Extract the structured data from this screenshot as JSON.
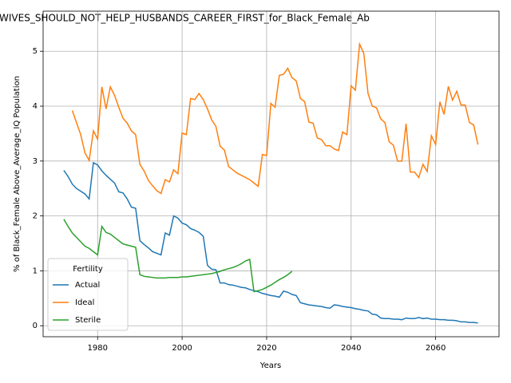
{
  "chart_data": {
    "type": "line",
    "title": "WIVES_SHOULD_NOT_HELP_HUSBANDS_CAREER_FIRST_for_Black_Female_Ab",
    "x_label": "Years",
    "y_label": "% of Black_Female Above_Average_IQ Population",
    "x": [
      1972,
      1973,
      1974,
      1975,
      1976,
      1977,
      1978,
      1979,
      1980,
      1981,
      1982,
      1983,
      1984,
      1985,
      1986,
      1987,
      1988,
      1989,
      1990,
      1991,
      1992,
      1993,
      1994,
      1995,
      1996,
      1997,
      1998,
      1999,
      2000,
      2001,
      2002,
      2003,
      2004,
      2005,
      2006,
      2007,
      2008,
      2009,
      2010,
      2011,
      2012,
      2013,
      2014,
      2015,
      2016,
      2017,
      2018,
      2019,
      2020,
      2021,
      2022,
      2023,
      2024,
      2025,
      2026,
      2027,
      2028,
      2029,
      2030,
      2031,
      2032,
      2033,
      2034,
      2035,
      2036,
      2037,
      2038,
      2039,
      2040,
      2041,
      2042,
      2043,
      2044,
      2045,
      2046,
      2047,
      2048,
      2049,
      2050,
      2051,
      2052,
      2053,
      2054,
      2055,
      2056,
      2057,
      2058,
      2059,
      2060,
      2061,
      2062,
      2063,
      2064,
      2065,
      2066,
      2067,
      2068,
      2069,
      2070
    ],
    "series": [
      {
        "name": "Actual",
        "color": "#1f77b4",
        "values": [
          2.83,
          2.72,
          2.58,
          2.5,
          2.45,
          2.4,
          2.31,
          2.97,
          2.93,
          2.82,
          2.74,
          2.67,
          2.6,
          2.44,
          2.42,
          2.31,
          2.16,
          2.14,
          1.55,
          1.48,
          1.42,
          1.35,
          1.32,
          1.29,
          1.69,
          1.65,
          2.0,
          1.96,
          1.87,
          1.84,
          1.77,
          1.74,
          1.7,
          1.63,
          1.1,
          1.03,
          1.02,
          0.78,
          0.78,
          0.75,
          0.74,
          0.72,
          0.7,
          0.69,
          0.66,
          0.64,
          0.62,
          0.59,
          0.57,
          0.55,
          0.54,
          0.52,
          0.63,
          0.61,
          0.57,
          0.55,
          0.42,
          0.4,
          0.38,
          0.37,
          0.36,
          0.35,
          0.33,
          0.32,
          0.38,
          0.37,
          0.35,
          0.34,
          0.33,
          0.31,
          0.3,
          0.28,
          0.27,
          0.21,
          0.2,
          0.14,
          0.13,
          0.13,
          0.12,
          0.12,
          0.11,
          0.14,
          0.13,
          0.13,
          0.15,
          0.13,
          0.14,
          0.12,
          0.12,
          0.11,
          0.11,
          0.1,
          0.1,
          0.09,
          0.07,
          0.07,
          0.06,
          0.06,
          0.05
        ]
      },
      {
        "name": "Ideal",
        "color": "#ff7f0e",
        "values": [
          null,
          null,
          3.92,
          3.7,
          3.48,
          3.15,
          3.01,
          3.55,
          3.4,
          4.35,
          3.95,
          4.35,
          4.2,
          3.98,
          3.78,
          3.69,
          3.55,
          3.48,
          2.94,
          2.82,
          2.65,
          2.55,
          2.46,
          2.41,
          2.66,
          2.62,
          2.84,
          2.77,
          3.51,
          3.48,
          4.14,
          4.12,
          4.23,
          4.12,
          3.95,
          3.75,
          3.63,
          3.27,
          3.2,
          2.9,
          2.84,
          2.78,
          2.74,
          2.7,
          2.66,
          2.6,
          2.54,
          3.12,
          3.1,
          4.05,
          3.98,
          4.56,
          4.58,
          4.69,
          4.52,
          4.46,
          4.14,
          4.08,
          3.71,
          3.69,
          3.42,
          3.39,
          3.28,
          3.28,
          3.22,
          3.19,
          3.53,
          3.48,
          4.37,
          4.29,
          5.13,
          4.96,
          4.23,
          4.0,
          3.97,
          3.77,
          3.7,
          3.35,
          3.29,
          3.0,
          3.0,
          3.68,
          2.8,
          2.8,
          2.7,
          2.94,
          2.81,
          3.46,
          3.3,
          4.08,
          3.85,
          4.36,
          4.11,
          4.27,
          4.02,
          4.02,
          3.7,
          3.66,
          3.3
        ]
      },
      {
        "name": "Sterile",
        "color": "#2ca02c",
        "values": [
          1.94,
          1.81,
          1.69,
          1.61,
          1.53,
          1.45,
          1.41,
          1.35,
          1.29,
          1.81,
          1.7,
          1.67,
          1.61,
          1.55,
          1.49,
          1.47,
          1.45,
          1.43,
          0.93,
          0.9,
          0.89,
          0.88,
          0.87,
          0.87,
          0.87,
          0.88,
          0.88,
          0.88,
          0.89,
          0.89,
          0.9,
          0.91,
          0.92,
          0.93,
          0.94,
          0.95,
          0.97,
          0.99,
          1.02,
          1.04,
          1.06,
          1.09,
          1.13,
          1.18,
          1.21,
          0.62,
          0.64,
          0.66,
          0.7,
          0.74,
          0.79,
          0.84,
          0.88,
          0.93,
          0.99,
          null,
          null,
          null,
          null,
          null,
          null,
          null,
          null,
          null,
          null,
          null,
          null,
          null,
          null,
          null,
          null,
          null,
          null,
          null,
          null,
          null,
          null,
          null,
          null,
          null,
          null,
          null,
          null,
          null,
          null,
          null,
          null,
          null,
          null,
          null,
          null,
          null,
          null,
          null,
          null,
          null,
          null,
          null,
          null
        ]
      }
    ],
    "xlim": [
      1967.1,
      2075.0
    ],
    "ylim": [
      -0.2,
      5.73
    ],
    "xticks": [
      1980,
      2000,
      2020,
      2040,
      2060
    ],
    "yticks": [
      0,
      1,
      2,
      3,
      4,
      5
    ],
    "grid": true,
    "legend_title": "Fertility",
    "legend_position": "lower left"
  }
}
